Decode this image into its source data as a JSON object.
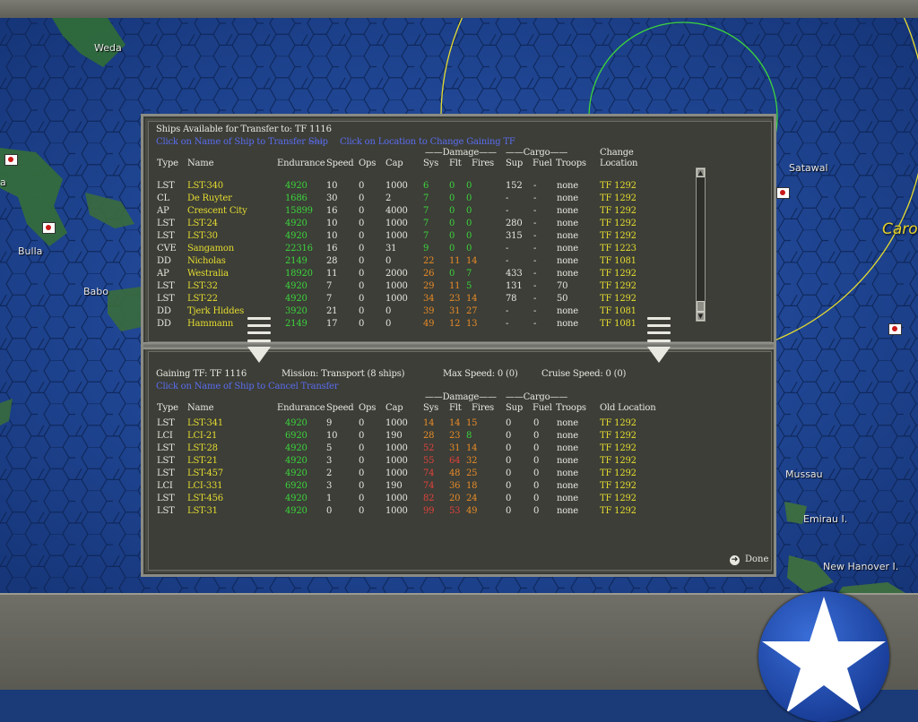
{
  "map": {
    "labels": {
      "weda": "Weda",
      "bulla": "Bulla",
      "babo": "Babo",
      "satawal": "Satawal",
      "caro": "Caro",
      "mussau": "Mussau",
      "emirau": "Emirau I.",
      "new_hanover": "New Hanover I.",
      "left_edge": "a"
    }
  },
  "top": {
    "title": "Ships Available for Transfer to: TF 1116",
    "hint_ship": "Click on Name of Ship to Transfer Ship",
    "hint_sep": "-----",
    "hint_location": "Click on Location to Change Gaining TF",
    "group_damage": "Damage",
    "group_cargo": "Cargo",
    "group_change": "Change",
    "headers": [
      "Type",
      "Name",
      "Endurance",
      "Speed",
      "Ops",
      "Cap",
      "Sys",
      "Flt",
      "Fires",
      "Sup",
      "Fuel",
      "Troops",
      "Location"
    ],
    "rows": [
      {
        "type": "LST",
        "name": "LST-340",
        "end": "4920",
        "spd": "10",
        "ops": "0",
        "cap": "1000",
        "sys": "6",
        "flt": "0",
        "fires": "0",
        "sup": "152",
        "fuel": "-",
        "troops": "none",
        "loc": "TF 1292",
        "sysc": "g",
        "fltc": "g",
        "firec": "g"
      },
      {
        "type": "CL",
        "name": "De Ruyter",
        "end": "1686",
        "spd": "30",
        "ops": "0",
        "cap": "2",
        "sys": "7",
        "flt": "0",
        "fires": "0",
        "sup": "-",
        "fuel": "-",
        "troops": "none",
        "loc": "TF 1292",
        "sysc": "g",
        "fltc": "g",
        "firec": "g"
      },
      {
        "type": "AP",
        "name": "Crescent City",
        "end": "15899",
        "spd": "16",
        "ops": "0",
        "cap": "4000",
        "sys": "7",
        "flt": "0",
        "fires": "0",
        "sup": "-",
        "fuel": "-",
        "troops": "none",
        "loc": "TF 1292",
        "sysc": "g",
        "fltc": "g",
        "firec": "g"
      },
      {
        "type": "LST",
        "name": "LST-24",
        "end": "4920",
        "spd": "10",
        "ops": "0",
        "cap": "1000",
        "sys": "7",
        "flt": "0",
        "fires": "0",
        "sup": "280",
        "fuel": "-",
        "troops": "none",
        "loc": "TF 1292",
        "sysc": "g",
        "fltc": "g",
        "firec": "g"
      },
      {
        "type": "LST",
        "name": "LST-30",
        "end": "4920",
        "spd": "10",
        "ops": "0",
        "cap": "1000",
        "sys": "7",
        "flt": "0",
        "fires": "0",
        "sup": "315",
        "fuel": "-",
        "troops": "none",
        "loc": "TF 1292",
        "sysc": "g",
        "fltc": "g",
        "firec": "g"
      },
      {
        "type": "CVE",
        "name": "Sangamon",
        "end": "22316",
        "spd": "16",
        "ops": "0",
        "cap": "31",
        "sys": "9",
        "flt": "0",
        "fires": "0",
        "sup": "-",
        "fuel": "-",
        "troops": "none",
        "loc": "TF 1223",
        "sysc": "g",
        "fltc": "g",
        "firec": "g"
      },
      {
        "type": "DD",
        "name": "Nicholas",
        "end": "2149",
        "spd": "28",
        "ops": "0",
        "cap": "0",
        "sys": "22",
        "flt": "11",
        "fires": "14",
        "sup": "-",
        "fuel": "-",
        "troops": "none",
        "loc": "TF 1081",
        "sysc": "o",
        "fltc": "o",
        "firec": "o"
      },
      {
        "type": "AP",
        "name": "Westralia",
        "end": "18920",
        "spd": "11",
        "ops": "0",
        "cap": "2000",
        "sys": "26",
        "flt": "0",
        "fires": "7",
        "sup": "433",
        "fuel": "-",
        "troops": "none",
        "loc": "TF 1292",
        "sysc": "o",
        "fltc": "g",
        "firec": "g"
      },
      {
        "type": "LST",
        "name": "LST-32",
        "end": "4920",
        "spd": "7",
        "ops": "0",
        "cap": "1000",
        "sys": "29",
        "flt": "11",
        "fires": "5",
        "sup": "131",
        "fuel": "-",
        "troops": "70",
        "loc": "TF 1292",
        "sysc": "o",
        "fltc": "o",
        "firec": "g"
      },
      {
        "type": "LST",
        "name": "LST-22",
        "end": "4920",
        "spd": "7",
        "ops": "0",
        "cap": "1000",
        "sys": "34",
        "flt": "23",
        "fires": "14",
        "sup": "78",
        "fuel": "-",
        "troops": "50",
        "loc": "TF 1292",
        "sysc": "o",
        "fltc": "o",
        "firec": "o"
      },
      {
        "type": "DD",
        "name": "Tjerk Hiddes",
        "end": "3920",
        "spd": "21",
        "ops": "0",
        "cap": "0",
        "sys": "39",
        "flt": "31",
        "fires": "27",
        "sup": "-",
        "fuel": "-",
        "troops": "none",
        "loc": "TF 1081",
        "sysc": "o",
        "fltc": "o",
        "firec": "o"
      },
      {
        "type": "DD",
        "name": "Hammann",
        "end": "2149",
        "spd": "17",
        "ops": "0",
        "cap": "0",
        "sys": "49",
        "flt": "12",
        "fires": "13",
        "sup": "-",
        "fuel": "-",
        "troops": "none",
        "loc": "TF 1081",
        "sysc": "o",
        "fltc": "o",
        "firec": "o"
      }
    ]
  },
  "bottom": {
    "gaining": "Gaining TF: TF 1116",
    "mission": "Mission: Transport (8 ships)",
    "max_speed": "Max Speed: 0 (0)",
    "cruise_speed": "Cruise Speed: 0 (0)",
    "hint": "Click on Name of Ship to Cancel Transfer",
    "group_damage": "Damage",
    "group_cargo": "Cargo",
    "headers": [
      "Type",
      "Name",
      "Endurance",
      "Speed",
      "Ops",
      "Cap",
      "Sys",
      "Flt",
      "Fires",
      "Sup",
      "Fuel",
      "Troops",
      "Old Location"
    ],
    "rows": [
      {
        "type": "LST",
        "name": "LST-341",
        "end": "4920",
        "spd": "9",
        "ops": "0",
        "cap": "1000",
        "sys": "14",
        "flt": "14",
        "fires": "15",
        "sup": "0",
        "fuel": "0",
        "troops": "none",
        "loc": "TF 1292",
        "sysc": "o",
        "fltc": "o",
        "firec": "o"
      },
      {
        "type": "LCI",
        "name": "LCI-21",
        "end": "6920",
        "spd": "10",
        "ops": "0",
        "cap": "190",
        "sys": "28",
        "flt": "23",
        "fires": "8",
        "sup": "0",
        "fuel": "0",
        "troops": "none",
        "loc": "TF 1292",
        "sysc": "o",
        "fltc": "o",
        "firec": "g"
      },
      {
        "type": "LST",
        "name": "LST-28",
        "end": "4920",
        "spd": "5",
        "ops": "0",
        "cap": "1000",
        "sys": "52",
        "flt": "31",
        "fires": "14",
        "sup": "0",
        "fuel": "0",
        "troops": "none",
        "loc": "TF 1292",
        "sysc": "r",
        "fltc": "o",
        "firec": "o"
      },
      {
        "type": "LST",
        "name": "LST-21",
        "end": "4920",
        "spd": "3",
        "ops": "0",
        "cap": "1000",
        "sys": "55",
        "flt": "64",
        "fires": "32",
        "sup": "0",
        "fuel": "0",
        "troops": "none",
        "loc": "TF 1292",
        "sysc": "r",
        "fltc": "r",
        "firec": "o"
      },
      {
        "type": "LST",
        "name": "LST-457",
        "end": "4920",
        "spd": "2",
        "ops": "0",
        "cap": "1000",
        "sys": "74",
        "flt": "48",
        "fires": "25",
        "sup": "0",
        "fuel": "0",
        "troops": "none",
        "loc": "TF 1292",
        "sysc": "r",
        "fltc": "o",
        "firec": "o"
      },
      {
        "type": "LCI",
        "name": "LCI-331",
        "end": "6920",
        "spd": "3",
        "ops": "0",
        "cap": "190",
        "sys": "74",
        "flt": "36",
        "fires": "18",
        "sup": "0",
        "fuel": "0",
        "troops": "none",
        "loc": "TF 1292",
        "sysc": "r",
        "fltc": "o",
        "firec": "o"
      },
      {
        "type": "LST",
        "name": "LST-456",
        "end": "4920",
        "spd": "1",
        "ops": "0",
        "cap": "1000",
        "sys": "82",
        "flt": "20",
        "fires": "24",
        "sup": "0",
        "fuel": "0",
        "troops": "none",
        "loc": "TF 1292",
        "sysc": "r",
        "fltc": "o",
        "firec": "o"
      },
      {
        "type": "LST",
        "name": "LST-31",
        "end": "4920",
        "spd": "0",
        "ops": "0",
        "cap": "1000",
        "sys": "99",
        "flt": "53",
        "fires": "49",
        "sup": "0",
        "fuel": "0",
        "troops": "none",
        "loc": "TF 1292",
        "sysc": "r",
        "fltc": "r",
        "firec": "o"
      }
    ]
  },
  "done_label": "Done",
  "icons": {
    "done": "arrow-right-circle-icon",
    "transfer_down": "transfer-down-arrow-icon",
    "roundel": "us-star-roundel-icon"
  },
  "colors": {
    "green": "#3cd43c",
    "orange": "#e88a28",
    "red": "#e0423c",
    "yellow": "#e6dc30",
    "blue_link": "#5a6cf0"
  }
}
